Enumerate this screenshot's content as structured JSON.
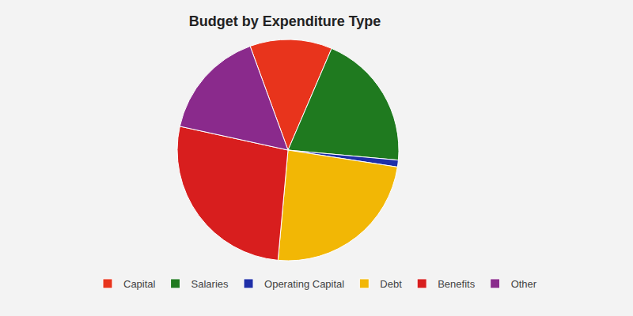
{
  "chart_data": {
    "type": "pie",
    "title": "Budget by Expenditure Type",
    "categories": [
      "Capital",
      "Salaries",
      "Operating Capital",
      "Debt",
      "Benefits",
      "Other"
    ],
    "values": [
      12,
      20,
      1,
      24,
      27,
      16
    ],
    "colors": [
      "#e8341c",
      "#1f7a1f",
      "#1f2fa8",
      "#f2b705",
      "#d81e1e",
      "#8a2a8c"
    ],
    "data_labels": false,
    "legend": "bottom"
  }
}
